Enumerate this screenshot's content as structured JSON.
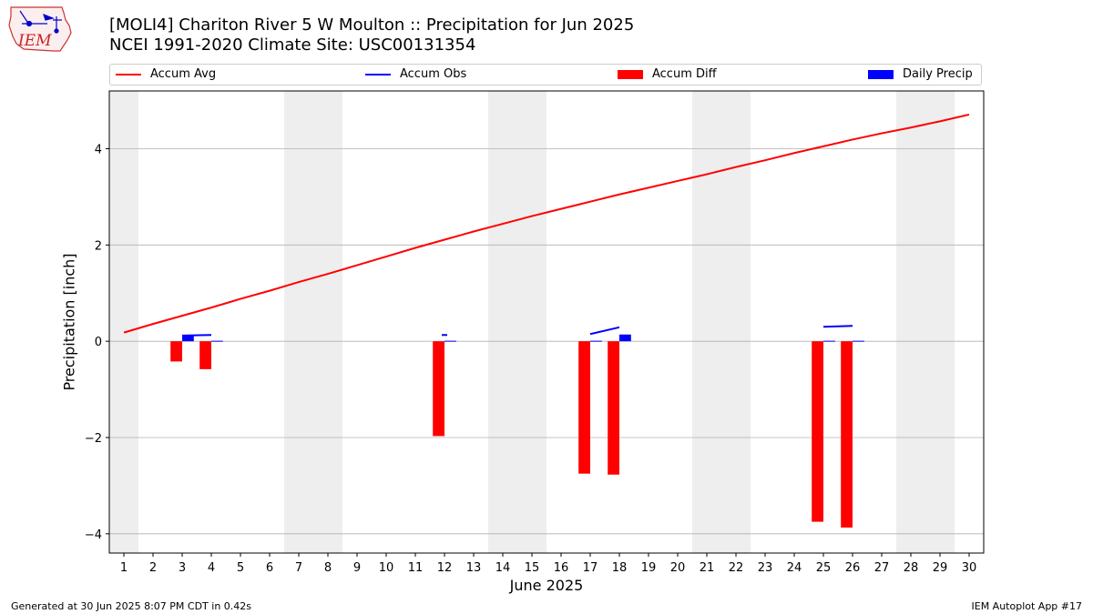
{
  "header": {
    "title_line1": "[MOLI4] Chariton River 5 W Moulton :: Precipitation for Jun 2025",
    "title_line2": "NCEI 1991-2020 Climate Site: USC00131354"
  },
  "logo": {
    "text": "IEM"
  },
  "legend": [
    {
      "label": "Accum Avg",
      "kind": "line",
      "color": "#ff0000"
    },
    {
      "label": "Accum Obs",
      "kind": "line",
      "color": "#0000ff"
    },
    {
      "label": "Accum Diff",
      "kind": "box",
      "color": "#ff0000"
    },
    {
      "label": "Daily Precip",
      "kind": "box",
      "color": "#0000ff"
    }
  ],
  "footer": {
    "left": "Generated at 30 Jun 2025 8:07 PM CDT in 0.42s",
    "right": "IEM Autoplot App #17"
  },
  "chart_data": {
    "type": "bar",
    "xlabel": "June 2025",
    "ylabel": "Precipitation [inch]",
    "xlim": [
      0.5,
      30.5
    ],
    "ylim": [
      -4.4,
      5.2
    ],
    "xticks": [
      1,
      2,
      3,
      4,
      5,
      6,
      7,
      8,
      9,
      10,
      11,
      12,
      13,
      14,
      15,
      16,
      17,
      18,
      19,
      20,
      21,
      22,
      23,
      24,
      25,
      26,
      27,
      28,
      29,
      30
    ],
    "yticks": [
      -4,
      -2,
      0,
      2,
      4
    ],
    "ytick_labels": [
      "−4",
      "−2",
      "0",
      "2",
      "4"
    ],
    "grid": "horizontal",
    "weekend_shading": [
      [
        0.5,
        1.5
      ],
      [
        6.5,
        8.5
      ],
      [
        13.5,
        15.5
      ],
      [
        20.5,
        22.5
      ],
      [
        27.5,
        29.5
      ]
    ],
    "colors": {
      "avg": "#ff0000",
      "obs": "#0000ff",
      "diff": "#ff0000",
      "daily": "#0000ff",
      "shade": "#eeeeee",
      "grid": "#b0b0b0"
    },
    "accum_avg": {
      "x": [
        1,
        2,
        3,
        4,
        5,
        6,
        7,
        8,
        9,
        10,
        11,
        12,
        13,
        14,
        15,
        16,
        17,
        18,
        19,
        20,
        21,
        22,
        23,
        24,
        25,
        26,
        27,
        28,
        29,
        30
      ],
      "values": [
        0.18,
        0.36,
        0.53,
        0.7,
        0.88,
        1.05,
        1.23,
        1.4,
        1.58,
        1.76,
        1.94,
        2.11,
        2.28,
        2.44,
        2.6,
        2.75,
        2.9,
        3.05,
        3.19,
        3.33,
        3.47,
        3.62,
        3.76,
        3.91,
        4.05,
        4.19,
        4.32,
        4.44,
        4.57,
        4.71
      ]
    },
    "accum_obs": [
      {
        "x": [
          3,
          4
        ],
        "values": [
          0.12,
          0.13
        ]
      },
      {
        "x": [
          12
        ],
        "values": [
          0.13
        ]
      },
      {
        "x": [
          17,
          18
        ],
        "values": [
          0.15,
          0.29
        ]
      },
      {
        "x": [
          25,
          26
        ],
        "values": [
          0.3,
          0.32
        ]
      }
    ],
    "accum_diff": {
      "x": [
        3,
        4,
        12,
        17,
        18,
        25,
        26
      ],
      "values": [
        -0.42,
        -0.58,
        -1.97,
        -2.75,
        -2.77,
        -3.75,
        -3.87
      ]
    },
    "daily_precip": {
      "x": [
        3,
        4,
        12,
        17,
        18,
        25,
        26
      ],
      "values": [
        0.12,
        0.01,
        0.01,
        0.01,
        0.14,
        0.01,
        0.01
      ]
    }
  }
}
